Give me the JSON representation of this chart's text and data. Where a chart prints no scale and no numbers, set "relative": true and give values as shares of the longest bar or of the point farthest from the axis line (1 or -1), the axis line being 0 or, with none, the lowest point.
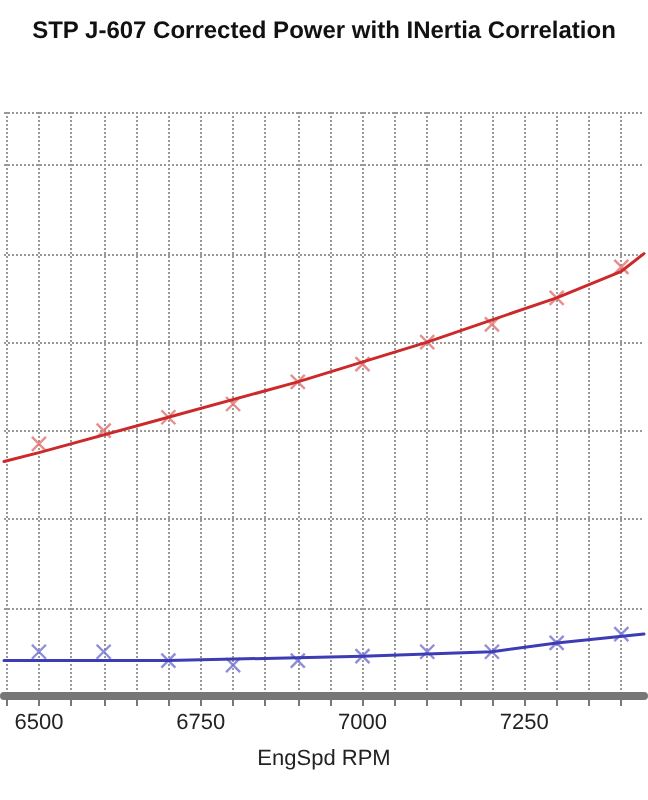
{
  "chart_data": {
    "type": "line",
    "title": "STP J-607 Corrected Power with INertia Correlation",
    "xlabel": "EngSpd RPM",
    "relative": true,
    "grid": true,
    "xlim": [
      6446,
      7435
    ],
    "xticks": [
      {
        "value": 6450,
        "label": null
      },
      6500,
      {
        "value": 6550,
        "label": null
      },
      {
        "value": 6600,
        "label": null
      },
      {
        "value": 6650,
        "label": null
      },
      {
        "value": 6700,
        "label": null
      },
      6750,
      {
        "value": 6800,
        "label": null
      },
      {
        "value": 6850,
        "label": null
      },
      {
        "value": 6900,
        "label": null
      },
      {
        "value": 6950,
        "label": null
      },
      7000,
      {
        "value": 7050,
        "label": null
      },
      {
        "value": 7100,
        "label": null
      },
      {
        "value": 7150,
        "label": null
      },
      {
        "value": 7200,
        "label": null
      },
      7250,
      {
        "value": 7300,
        "label": null
      },
      {
        "value": 7350,
        "label": null
      },
      {
        "value": 7400,
        "label": null
      }
    ],
    "series": [
      {
        "color": "#cc2a2a",
        "marker": "none",
        "x": [
          6446,
          6500,
          6700,
          6900,
          7100,
          7300,
          7400,
          7435
        ],
        "values": [
          0.53,
          0.55,
          0.63,
          0.71,
          0.8,
          0.9,
          0.96,
          1
        ]
      },
      {
        "color": "#3c3cb4",
        "marker": "none",
        "x": [
          6446,
          6700,
          7000,
          7200,
          7300,
          7435
        ],
        "values": [
          0.08,
          0.08,
          0.09,
          0.1,
          0.12,
          0.14
        ]
      },
      {
        "type": "scatter",
        "color": "#e07070",
        "marker": "cross",
        "x": [
          6500,
          6600,
          6700,
          6800,
          6900,
          7000,
          7100,
          7200,
          7300,
          7400
        ],
        "values": [
          0.57,
          0.6,
          0.63,
          0.66,
          0.71,
          0.75,
          0.8,
          0.84,
          0.9,
          0.97
        ]
      },
      {
        "type": "scatter",
        "color": "#7070d0",
        "marker": "cross",
        "x": [
          6500,
          6600,
          6700,
          6800,
          6900,
          7000,
          7100,
          7200,
          7300,
          7400
        ],
        "values": [
          0.1,
          0.1,
          0.08,
          0.07,
          0.08,
          0.09,
          0.1,
          0.1,
          0.12,
          0.14
        ]
      }
    ]
  }
}
